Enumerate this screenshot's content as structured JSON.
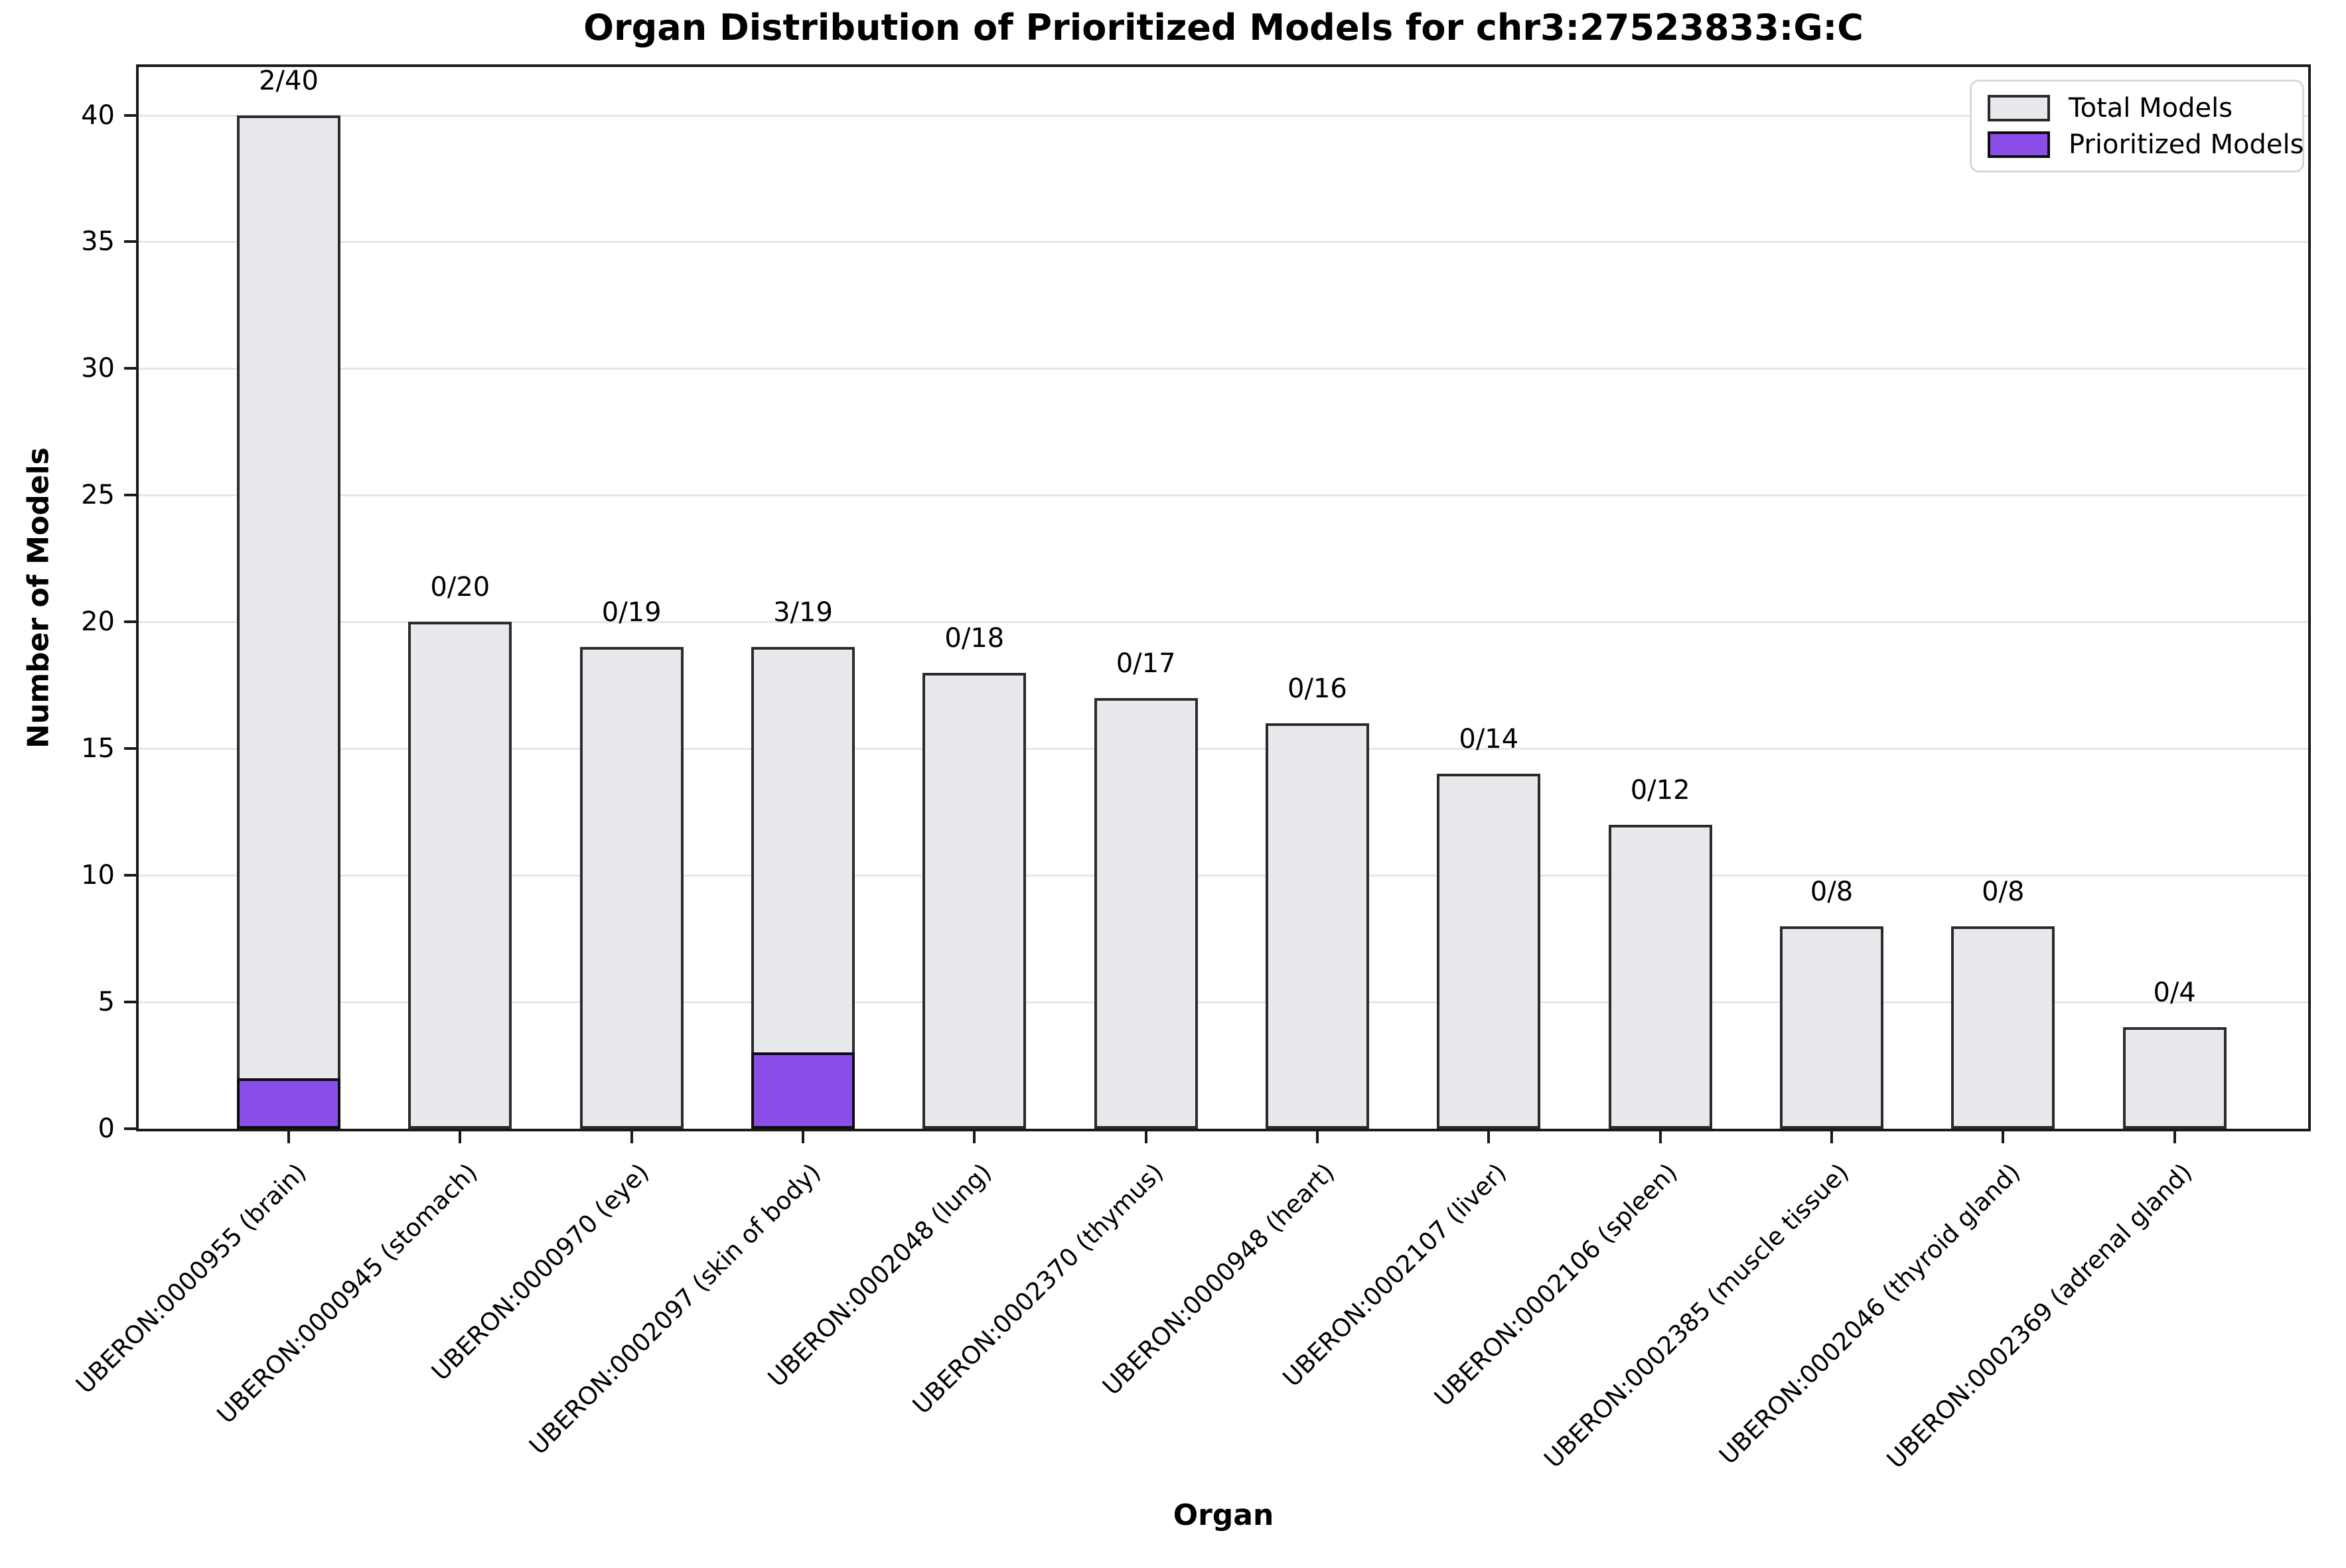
{
  "chart_data": {
    "type": "bar",
    "title": "Organ Distribution of Prioritized Models for chr3:27523833:G:C",
    "xlabel": "Organ",
    "ylabel": "Number of Models",
    "ylim": [
      0,
      41.9
    ],
    "yticks": [
      0,
      5,
      10,
      15,
      20,
      25,
      30,
      35,
      40
    ],
    "grid": "horizontal",
    "grid_color": "#e7e7e7",
    "axis_color": "#1a1a1a",
    "legend_position": "upper right",
    "categories": [
      "UBERON:0000955 (brain)",
      "UBERON:0000945 (stomach)",
      "UBERON:0000970 (eye)",
      "UBERON:0002097 (skin of body)",
      "UBERON:0002048 (lung)",
      "UBERON:0002370 (thymus)",
      "UBERON:0000948 (heart)",
      "UBERON:0002107 (liver)",
      "UBERON:0002106 (spleen)",
      "UBERON:0002385 (muscle tissue)",
      "UBERON:0002046 (thyroid gland)",
      "UBERON:0002369 (adrenal gland)"
    ],
    "series": [
      {
        "name": "Total Models",
        "color": "#e8e9ed",
        "edge_color": "#2b2b2b",
        "values": [
          40,
          20,
          19,
          19,
          18,
          17,
          16,
          14,
          12,
          8,
          8,
          4
        ]
      },
      {
        "name": "Prioritized Models",
        "color": "#8a4de8",
        "edge_color": "#0d0d0d",
        "values": [
          2,
          0,
          0,
          3,
          0,
          0,
          0,
          0,
          0,
          0,
          0,
          0
        ]
      }
    ],
    "bar_labels": [
      "2/40",
      "0/20",
      "0/19",
      "3/19",
      "0/18",
      "0/17",
      "0/16",
      "0/14",
      "0/12",
      "0/8",
      "0/8",
      "0/4"
    ]
  }
}
